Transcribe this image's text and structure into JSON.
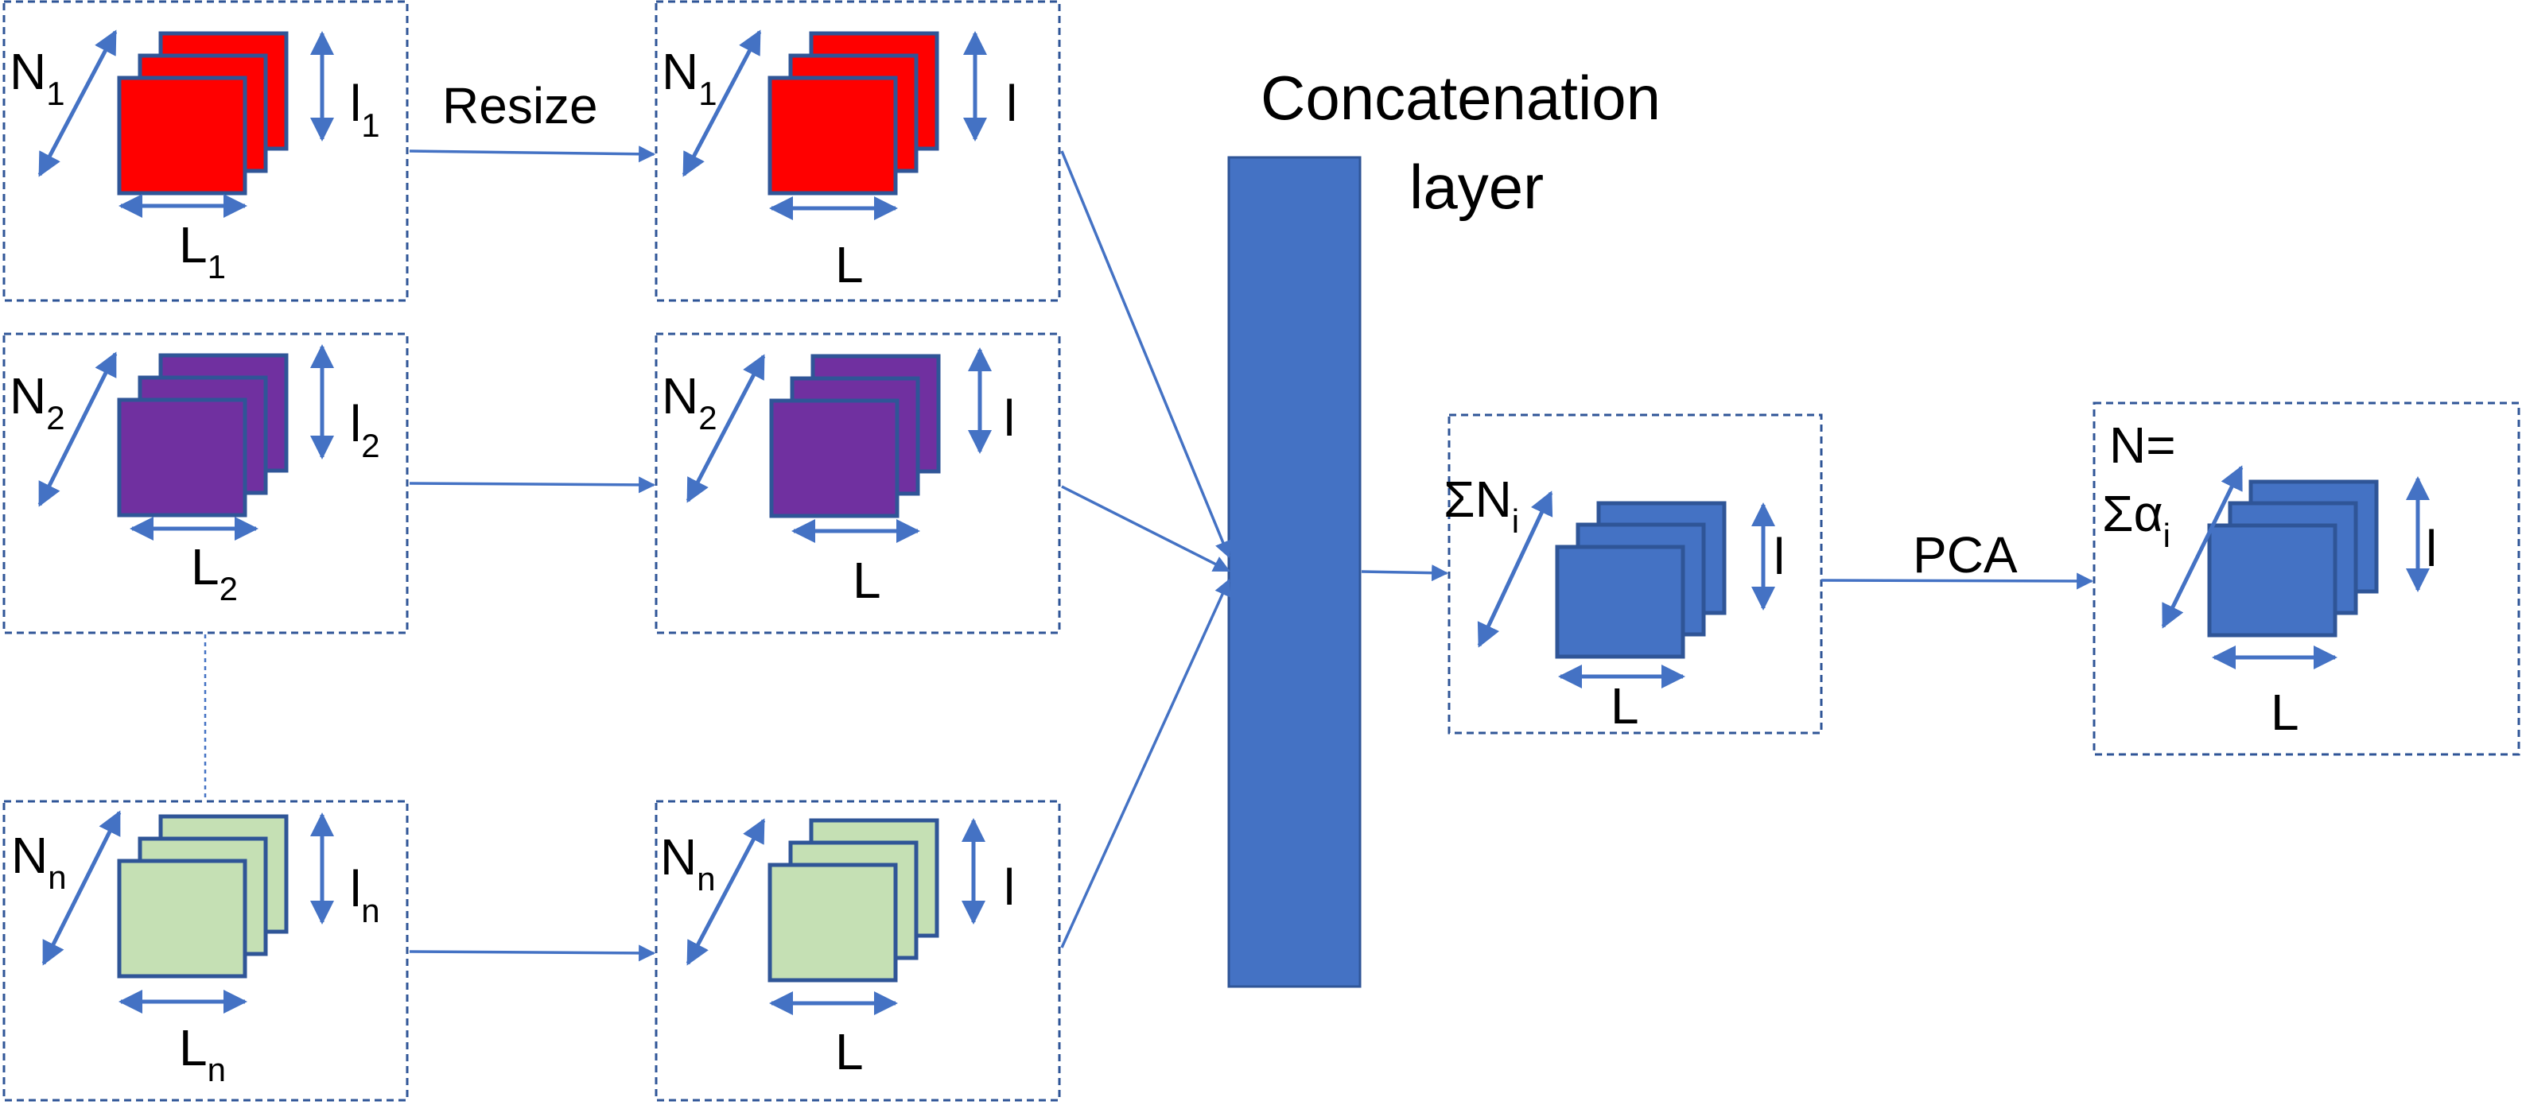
{
  "colors": {
    "stroke": "#4472c4",
    "red_layer": "#ff0000",
    "purple_layer": "#7030a0",
    "green_layer": "#c5e0b4",
    "blue_layer": "#4472c4",
    "box_border": "#2f5597"
  },
  "labels": {
    "resize": "Resize",
    "concat_line1": "Concatenation",
    "concat_line2": "layer",
    "pca": "PCA",
    "L": "L",
    "l": "l",
    "input_1": {
      "N": "N",
      "N_sub": "1",
      "l": "l",
      "l_sub": "1",
      "L": "L",
      "L_sub": "1"
    },
    "input_2": {
      "N": "N",
      "N_sub": "2",
      "l": "l",
      "l_sub": "2",
      "L": "L",
      "L_sub": "2"
    },
    "input_n": {
      "N": "N",
      "N_sub": "n",
      "l": "l",
      "l_sub": "n",
      "L": "L",
      "L_sub": "n"
    },
    "resized_1": {
      "N": "N",
      "N_sub": "1"
    },
    "resized_2": {
      "N": "N",
      "N_sub": "2"
    },
    "resized_n": {
      "N": "N",
      "N_sub": "n"
    },
    "concat_out": {
      "N": "ΣN",
      "N_sub": "i"
    },
    "pca_out": {
      "line1": "N=",
      "line2": "Σα",
      "sub": "i"
    }
  }
}
